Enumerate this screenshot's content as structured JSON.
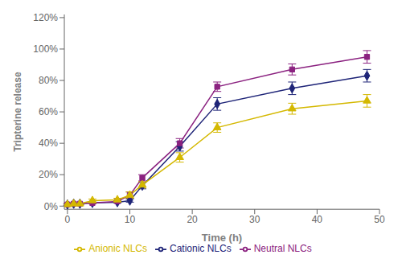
{
  "chart_data": {
    "type": "line",
    "xlabel": "Time (h)",
    "ylabel": "Tripterine release",
    "x": [
      0,
      1,
      2,
      4,
      8,
      10,
      12,
      18,
      24,
      36,
      48
    ],
    "series": [
      {
        "name": "Cationic NLCs",
        "color": "#1f2578",
        "marker": "diamond",
        "values": [
          1.0,
          1.5,
          1.5,
          2.0,
          2.5,
          3.5,
          13.0,
          38.0,
          65.0,
          75.0,
          83.0
        ],
        "error": [
          0.5,
          0.5,
          0.5,
          0.5,
          0.5,
          1.0,
          2.0,
          3.0,
          4.0,
          4.0,
          4.0
        ]
      },
      {
        "name": "Neutral NLCs",
        "color": "#8b2280",
        "marker": "square",
        "values": [
          1.0,
          1.5,
          1.5,
          2.0,
          3.0,
          7.0,
          18.0,
          40.0,
          76.0,
          87.0,
          95.0
        ],
        "error": [
          0.5,
          0.5,
          0.5,
          0.5,
          0.5,
          2.0,
          2.0,
          3.0,
          3.0,
          3.5,
          4.0
        ]
      },
      {
        "name": "Anionic NLCs",
        "color": "#d4b800",
        "marker": "triangle",
        "values": [
          1.0,
          1.5,
          1.5,
          3.5,
          4.0,
          7.0,
          13.5,
          31.0,
          50.0,
          62.0,
          67.0
        ],
        "error": [
          0.5,
          0.5,
          0.5,
          1.0,
          1.0,
          2.0,
          2.0,
          3.0,
          3.0,
          3.5,
          4.0
        ]
      }
    ],
    "xlim": [
      -0.5,
      50
    ],
    "ylim": [
      -2.0,
      122.0
    ],
    "xticks": [
      0,
      10,
      20,
      30,
      40,
      50
    ],
    "yticks": [
      {
        "value": 0,
        "label": "0%"
      },
      {
        "value": 20,
        "label": "20%"
      },
      {
        "value": 40,
        "label": "40%"
      },
      {
        "value": 60,
        "label": "60%"
      },
      {
        "value": 80,
        "label": "80%"
      },
      {
        "value": 100,
        "label": "100%"
      },
      {
        "value": 120,
        "label": "120%"
      }
    ],
    "legend": "bottom",
    "grid": false
  }
}
